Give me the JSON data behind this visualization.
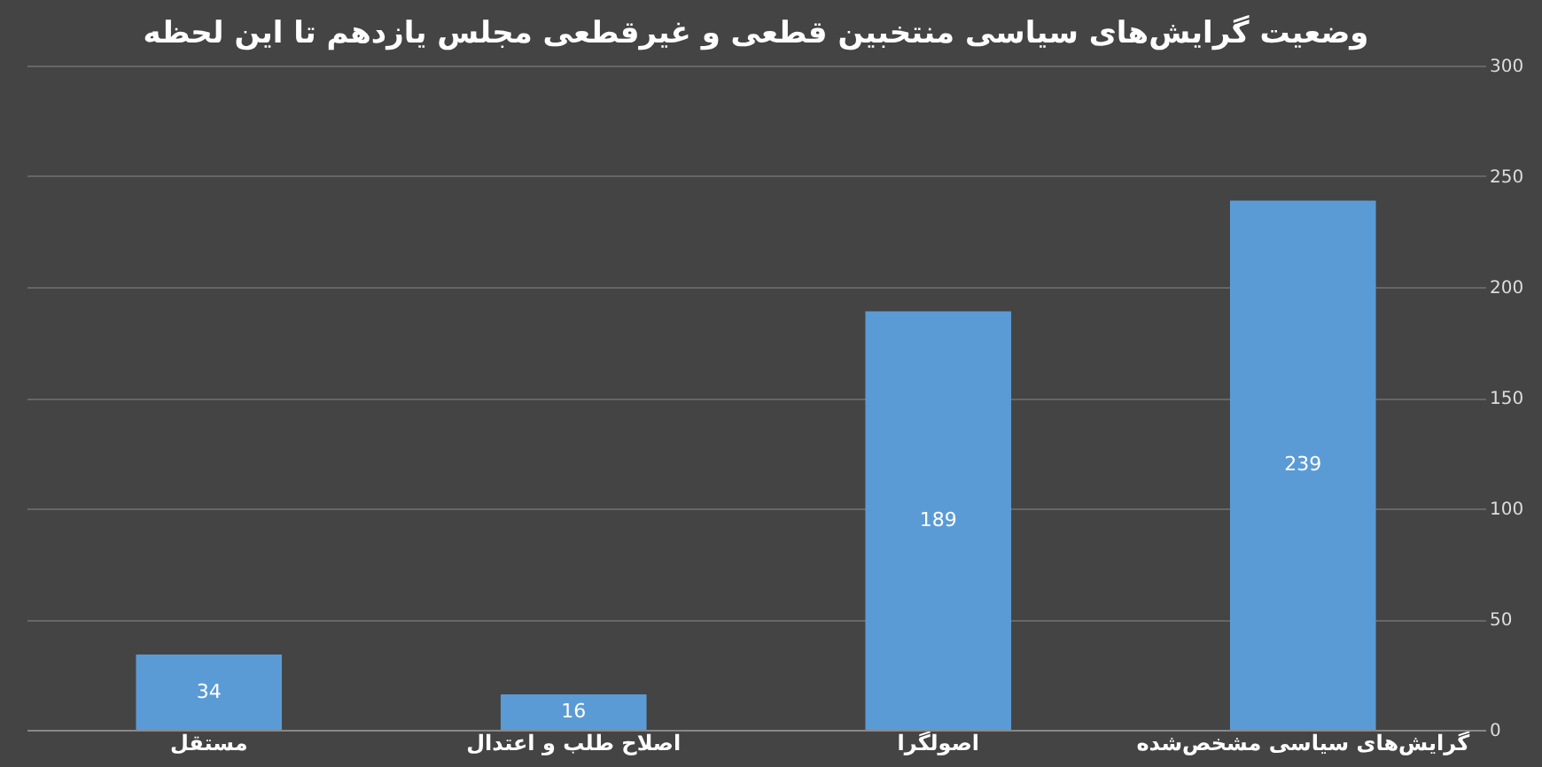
{
  "chart_data": {
    "type": "bar",
    "title": "وضعیت گرایش‌های سیاسی منتخبین قطعی و غیرقطعی مجلس یازدهم تا این لحظه",
    "categories": [
      "مستقل",
      "اصلاح طلب و اعتدال",
      "اصولگرا",
      "گرایش‌های سیاسی مشخص‌شده"
    ],
    "values": [
      34,
      16,
      189,
      239
    ],
    "color": "#5b9bd5",
    "ylim": [
      0,
      300
    ],
    "yticks": [
      0,
      50,
      100,
      150,
      200,
      250,
      300
    ],
    "grid": "y",
    "data_labels": true
  }
}
